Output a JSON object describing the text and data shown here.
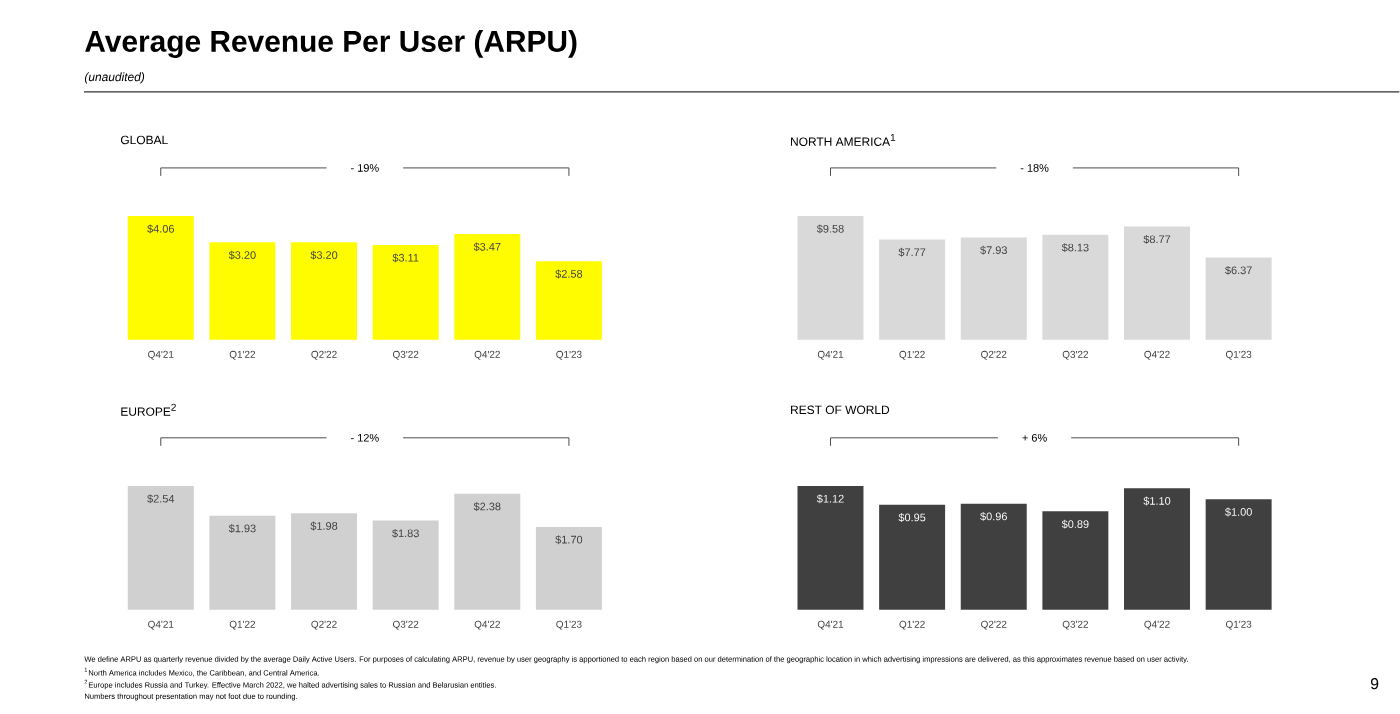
{
  "chart_data": [
    {
      "type": "other",
      "title": "Average Revenue Per User (ARPU)",
      "subtitle": "(unaudited)",
      "annotations": [
        "We define ARPU as quarterly revenue divided by the average Daily Active Users. For purposes of calculating ARPU, revenue by user geography is apportioned to each region based on our determination of the geographic location in which advertising impressions are delivered, as this approximates revenue based on user activity.",
        "$^{1}$North America includes Mexico, the Caribbean, and Central America.",
        "$^{2}$Europe includes Russia and Turkey. Effective March 2022, we halted advertising sales to Russian and Belarusian entities.",
        "Numbers throughout presentation may not foot due to rounding.",
        "9"
      ]
    },
    {
      "type": "bar",
      "title": "GLOBAL",
      "categories": [
        "Q4'21",
        "Q1'22",
        "Q2'22",
        "Q3'22",
        "Q4'22",
        "Q1'23"
      ],
      "values": [
        4.06,
        3.2,
        3.2,
        3.11,
        3.47,
        2.58
      ],
      "value_labels": [
        "$4.06",
        "$3.20",
        "$3.20",
        "$3.11",
        "$3.47",
        "$2.58"
      ],
      "color": "#fffc00",
      "annotations": [
        "- 19%"
      ]
    },
    {
      "type": "bar",
      "title": "NORTH AMERICA$^{1}$",
      "categories": [
        "Q4'21",
        "Q1'22",
        "Q2'22",
        "Q3'22",
        "Q4'22",
        "Q1'23"
      ],
      "values": [
        9.58,
        7.77,
        7.93,
        8.13,
        8.77,
        6.37
      ],
      "value_labels": [
        "$9.58",
        "$7.77",
        "$7.93",
        "$8.13",
        "$8.77",
        "$6.37"
      ],
      "color": "#d9d9d9",
      "annotations": [
        "- 18%"
      ]
    },
    {
      "type": "bar",
      "title": "EUROPE$^{2}$",
      "categories": [
        "Q4'21",
        "Q1'22",
        "Q2'22",
        "Q3'22",
        "Q4'22",
        "Q1'23"
      ],
      "values": [
        2.54,
        1.93,
        1.98,
        1.83,
        2.38,
        1.7
      ],
      "value_labels": [
        "$2.54",
        "$1.93",
        "$1.98",
        "$1.83",
        "$2.38",
        "$1.70"
      ],
      "color": "#d0d0d0",
      "annotations": [
        "- 12%"
      ]
    },
    {
      "type": "bar",
      "title": "REST OF WORLD",
      "categories": [
        "Q4'21",
        "Q1'22",
        "Q2'22",
        "Q3'22",
        "Q4'22",
        "Q1'23"
      ],
      "values": [
        1.12,
        0.95,
        0.96,
        0.89,
        1.1,
        1.0
      ],
      "value_labels": [
        "$1.12",
        "$0.95",
        "$0.96",
        "$0.89",
        "$1.10",
        "$1.00"
      ],
      "color": "#404040",
      "annotations": [
        "+ 6%"
      ]
    }
  ]
}
